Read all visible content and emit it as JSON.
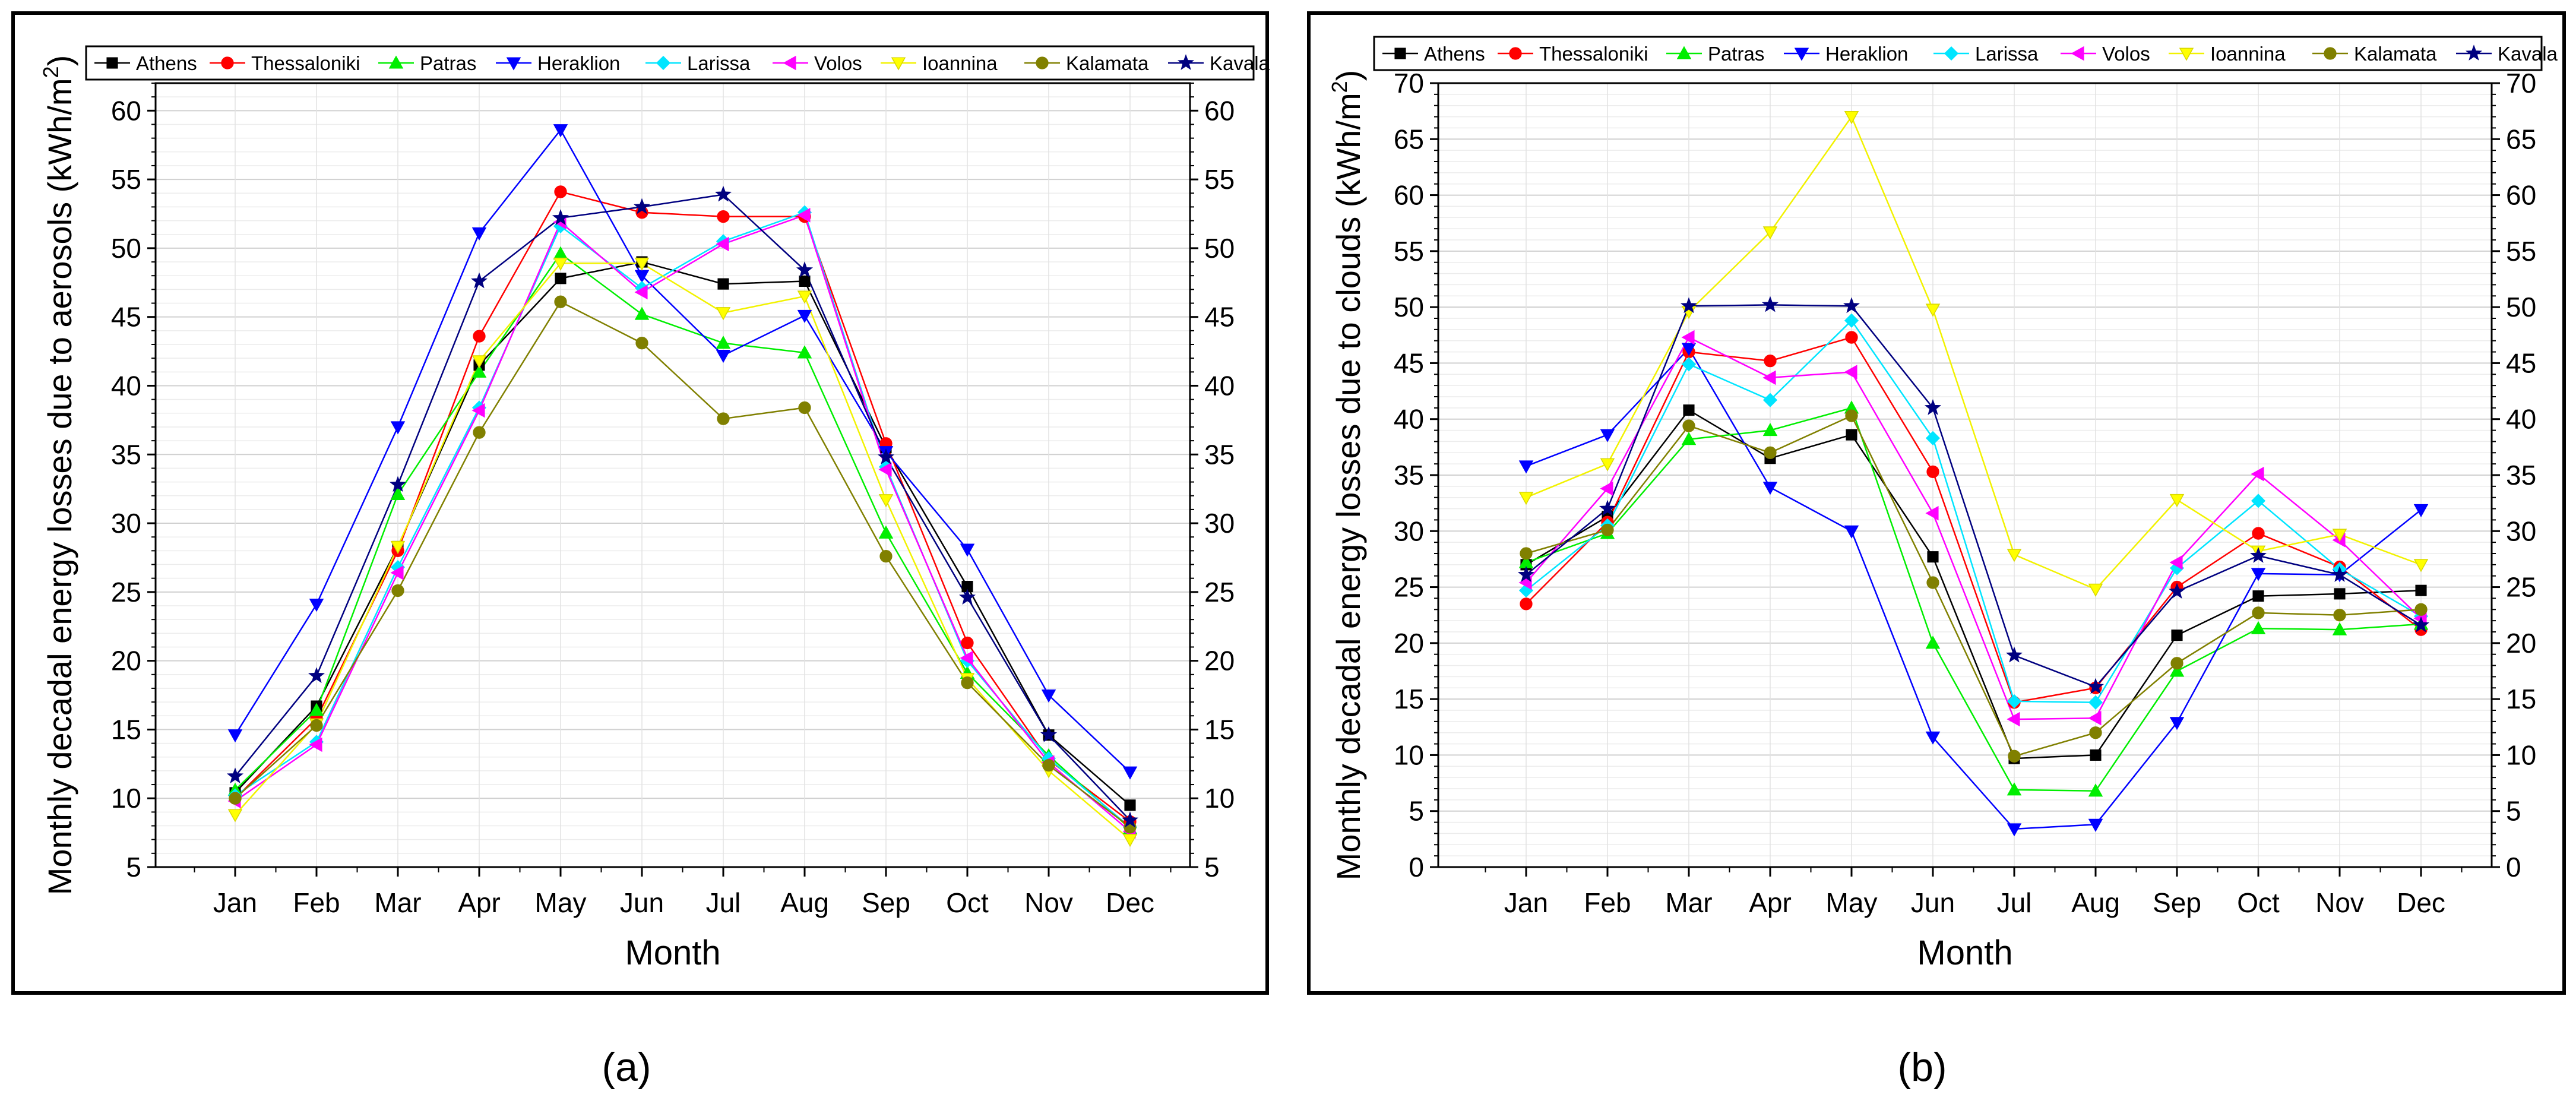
{
  "months": [
    "Jan",
    "Feb",
    "Mar",
    "Apr",
    "May",
    "Jun",
    "Jul",
    "Aug",
    "Sep",
    "Oct",
    "Nov",
    "Dec"
  ],
  "xlabel": "Month",
  "series_styles": [
    {
      "name": "Athens",
      "color": "#000000",
      "marker": "square"
    },
    {
      "name": "Thessaloniki",
      "color": "#ff0000",
      "marker": "circle"
    },
    {
      "name": "Patras",
      "color": "#00ee00",
      "marker": "triangle-up"
    },
    {
      "name": "Heraklion",
      "color": "#0000ff",
      "marker": "triangle-down"
    },
    {
      "name": "Larissa",
      "color": "#00e5ff",
      "marker": "diamond"
    },
    {
      "name": "Volos",
      "color": "#ff00ff",
      "marker": "triangle-left"
    },
    {
      "name": "Ioannina",
      "color": "#ffff00",
      "marker": "triangle-down"
    },
    {
      "name": "Kalamata",
      "color": "#808000",
      "marker": "circle"
    },
    {
      "name": "Kavala",
      "color": "#000080",
      "marker": "star"
    }
  ],
  "chart_data": [
    {
      "type": "line",
      "panel_label": "(a)",
      "ylabel_main": "Monthly decadal energy losses due to aerosols (kWh/m",
      "ylabel_sup": "2",
      "ylabel_end": ")",
      "ylim": [
        5,
        62
      ],
      "yticks": [
        5,
        10,
        15,
        20,
        25,
        30,
        35,
        40,
        45,
        50,
        55,
        60
      ],
      "categories": [
        "Jan",
        "Feb",
        "Mar",
        "Apr",
        "May",
        "Jun",
        "Jul",
        "Aug",
        "Sep",
        "Oct",
        "Nov",
        "Dec"
      ],
      "series": [
        {
          "name": "Athens",
          "values": [
            10.4,
            16.7,
            28.3,
            41.5,
            47.8,
            49.0,
            47.4,
            47.6,
            35.5,
            25.4,
            14.6,
            9.5
          ]
        },
        {
          "name": "Thessaloniki",
          "values": [
            10.0,
            15.8,
            28.0,
            43.6,
            54.1,
            52.6,
            52.3,
            52.3,
            35.8,
            21.3,
            12.8,
            8.3
          ]
        },
        {
          "name": "Patras",
          "values": [
            10.6,
            16.4,
            32.1,
            41.0,
            49.6,
            45.2,
            43.1,
            42.4,
            29.3,
            19.1,
            13.1,
            7.8
          ]
        },
        {
          "name": "Heraklion",
          "values": [
            14.6,
            24.1,
            37.0,
            51.1,
            58.6,
            48.0,
            42.2,
            45.1,
            35.2,
            28.1,
            17.5,
            11.9
          ]
        },
        {
          "name": "Larissa",
          "values": [
            10.2,
            14.1,
            26.8,
            38.4,
            51.6,
            47.1,
            50.5,
            52.6,
            34.1,
            20.0,
            12.9,
            7.9
          ]
        },
        {
          "name": "Volos",
          "values": [
            9.8,
            13.9,
            26.4,
            38.2,
            51.9,
            46.8,
            50.3,
            52.4,
            33.9,
            20.2,
            12.6,
            7.6
          ]
        },
        {
          "name": "Ioannina",
          "values": [
            8.8,
            15.4,
            28.3,
            41.8,
            48.9,
            48.9,
            45.3,
            46.5,
            31.7,
            18.7,
            12.0,
            7.0
          ]
        },
        {
          "name": "Kalamata",
          "values": [
            10.0,
            15.3,
            25.1,
            36.6,
            46.1,
            43.1,
            37.6,
            38.4,
            27.6,
            18.4,
            12.4,
            7.9
          ]
        },
        {
          "name": "Kavala",
          "values": [
            11.6,
            18.9,
            32.8,
            47.6,
            52.2,
            53.0,
            53.9,
            48.4,
            34.8,
            24.6,
            14.6,
            8.4
          ]
        }
      ]
    },
    {
      "type": "line",
      "panel_label": "(b)",
      "ylabel_main": "Monthly decadal energy losses due to clouds (kWh/m",
      "ylabel_sup": "2",
      "ylabel_end": ")",
      "ylim": [
        0,
        70
      ],
      "yticks": [
        0,
        5,
        10,
        15,
        20,
        25,
        30,
        35,
        40,
        45,
        50,
        55,
        60,
        65,
        70
      ],
      "categories": [
        "Jan",
        "Feb",
        "Mar",
        "Apr",
        "May",
        "Jun",
        "Jul",
        "Aug",
        "Sep",
        "Oct",
        "Nov",
        "Dec"
      ],
      "series": [
        {
          "name": "Athens",
          "values": [
            27.0,
            31.3,
            40.8,
            36.5,
            38.6,
            27.7,
            9.7,
            10.0,
            20.7,
            24.2,
            24.4,
            24.7
          ]
        },
        {
          "name": "Thessaloniki",
          "values": [
            23.5,
            30.8,
            46.0,
            45.2,
            47.3,
            35.3,
            14.7,
            16.0,
            25.0,
            29.8,
            26.8,
            21.2
          ]
        },
        {
          "name": "Patras",
          "values": [
            27.2,
            29.8,
            38.2,
            39.0,
            41.0,
            20.0,
            6.9,
            6.8,
            17.5,
            21.3,
            21.2,
            21.7
          ]
        },
        {
          "name": "Heraklion",
          "values": [
            35.8,
            38.6,
            46.3,
            33.9,
            30.0,
            11.6,
            3.4,
            3.8,
            12.9,
            26.2,
            26.1,
            31.9
          ]
        },
        {
          "name": "Larissa",
          "values": [
            24.7,
            30.5,
            44.9,
            41.7,
            48.8,
            38.3,
            14.8,
            14.7,
            26.7,
            32.7,
            26.6,
            22.4
          ]
        },
        {
          "name": "Volos",
          "values": [
            25.4,
            33.8,
            47.3,
            43.7,
            44.2,
            31.6,
            13.2,
            13.3,
            27.2,
            35.1,
            29.2,
            22.2
          ]
        },
        {
          "name": "Ioannina",
          "values": [
            33.0,
            36.0,
            49.6,
            56.7,
            67.0,
            49.8,
            27.9,
            24.8,
            32.8,
            28.2,
            29.7,
            27.0
          ]
        },
        {
          "name": "Kalamata",
          "values": [
            28.0,
            30.1,
            39.4,
            37.0,
            40.3,
            25.4,
            9.9,
            12.0,
            18.2,
            22.7,
            22.5,
            23.0
          ]
        },
        {
          "name": "Kavala",
          "values": [
            26.1,
            32.0,
            50.1,
            50.2,
            50.1,
            41.0,
            18.9,
            16.1,
            24.6,
            27.8,
            26.1,
            21.6
          ]
        }
      ]
    }
  ]
}
